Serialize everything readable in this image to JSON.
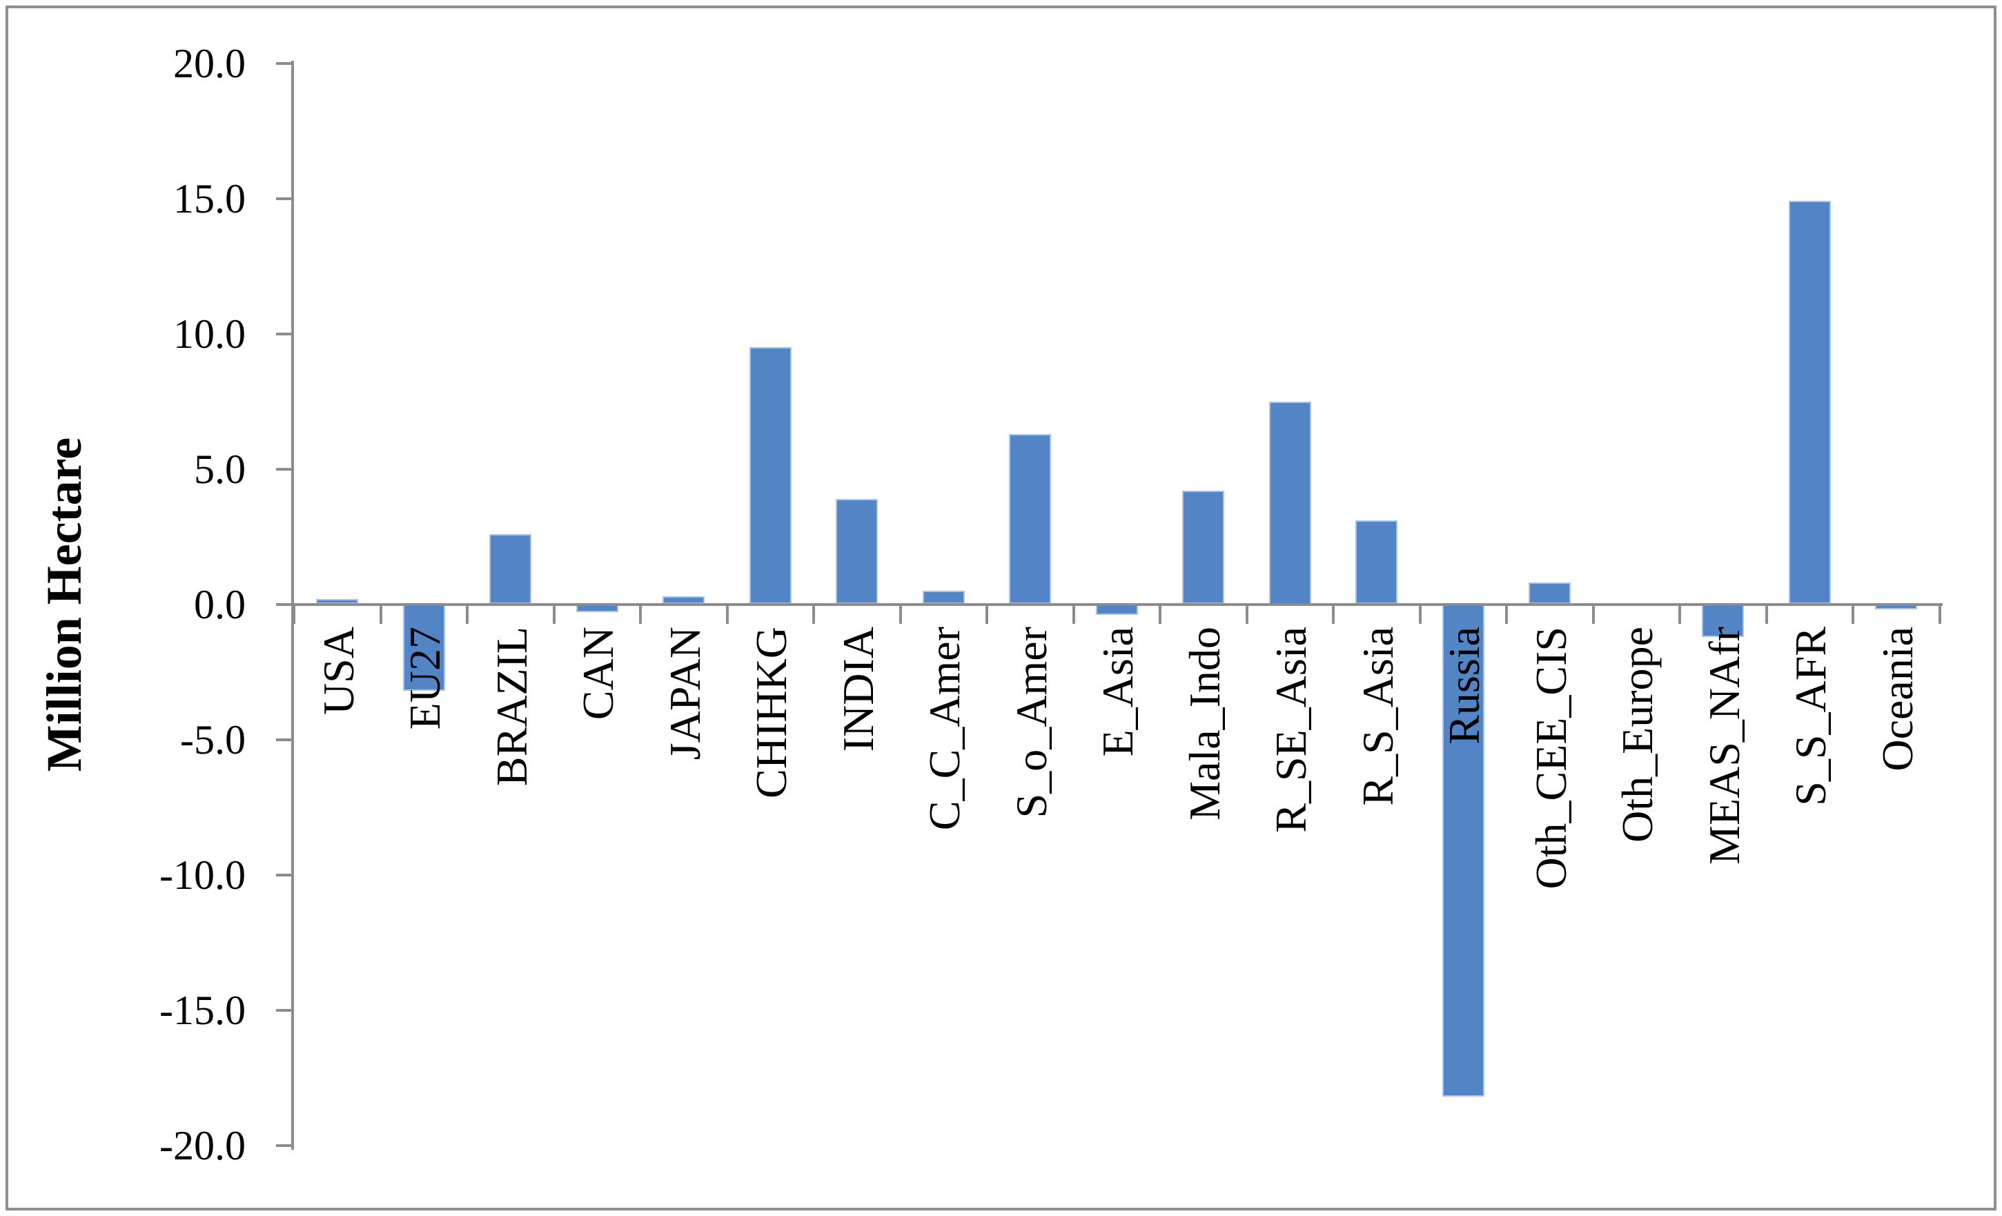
{
  "figure": {
    "background": "#ffffff",
    "frame_border_color": "#8f8f8f"
  },
  "chart_data": {
    "type": "bar",
    "title": "",
    "xlabel": "",
    "ylabel": "Million Hectare",
    "categories": [
      "USA",
      "EU27",
      "BRAZIL",
      "CAN",
      "JAPAN",
      "CHIHKG",
      "INDIA",
      "C_C_Amer",
      "S_o_Amer",
      "E_Asia",
      "Mala_Indo",
      "R_SE_Asia",
      "R_S_Asia",
      "Russia",
      "Oth_CEE_CIS",
      "Oth_Europe",
      "MEAS_NAfr",
      "S_S_AFR",
      "Oceania"
    ],
    "values": [
      0.2,
      -3.2,
      2.6,
      -0.3,
      0.3,
      9.5,
      3.9,
      0.5,
      6.3,
      -0.4,
      4.2,
      7.5,
      3.1,
      -18.2,
      0.8,
      0.0,
      -1.2,
      14.9,
      -0.2
    ],
    "ylim": [
      -20,
      20
    ],
    "ytick_step": 5,
    "ytick_labels": [
      "20.0",
      "15.0",
      "10.0",
      "5.0",
      "0.0",
      "-5.0",
      "-10.0",
      "-15.0",
      "-20.0"
    ],
    "grid": false,
    "legend_position": "none",
    "bar_color": "#5385C6",
    "bar_border_color": "#A9C4E6",
    "axis_color": "#8C8C8C",
    "text_color": "#000000"
  }
}
